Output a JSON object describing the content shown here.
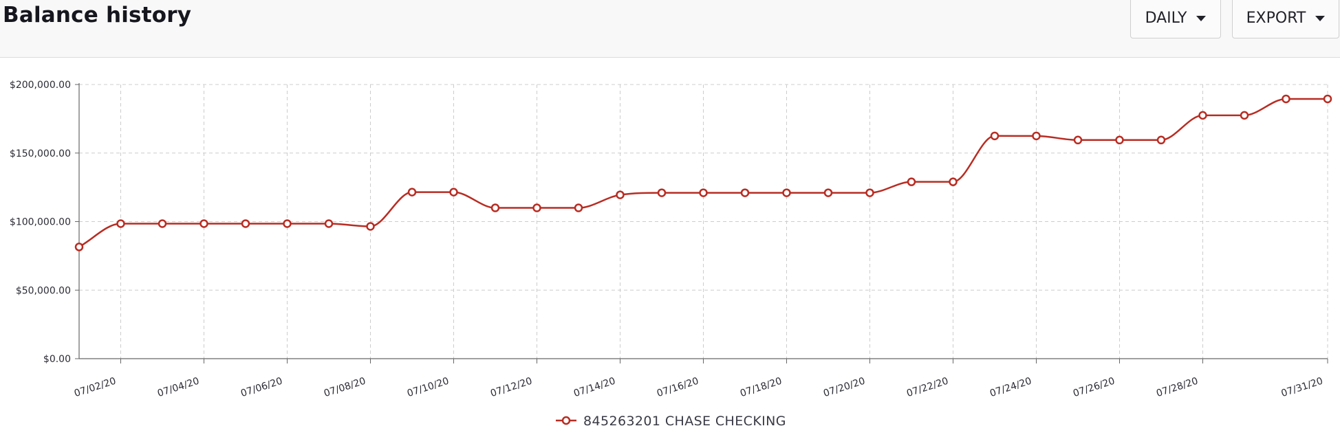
{
  "header": {
    "title": "Balance history",
    "daily_label": "DAILY",
    "export_label": "EXPORT"
  },
  "colors": {
    "series": "#b82c22",
    "grid": "#cccccc",
    "axis": "#666666"
  },
  "chart_data": {
    "type": "line",
    "title": "",
    "xlabel": "",
    "ylabel": "",
    "ylim": [
      0,
      200000
    ],
    "grid": true,
    "legend_placement": "bottom-center",
    "y_ticks": [
      "$0.00",
      "$50,000.00",
      "$100,000.00",
      "$150,000.00",
      "$200,000.00"
    ],
    "x_tick_labels": [
      "07/02/20",
      "07/04/20",
      "07/06/20",
      "07/08/20",
      "07/10/20",
      "07/12/20",
      "07/14/20",
      "07/16/20",
      "07/18/20",
      "07/20/20",
      "07/22/20",
      "07/24/20",
      "07/26/20",
      "07/28/20",
      "07/31/20"
    ],
    "x": [
      "07/01/20",
      "07/02/20",
      "07/03/20",
      "07/04/20",
      "07/05/20",
      "07/06/20",
      "07/07/20",
      "07/08/20",
      "07/09/20",
      "07/10/20",
      "07/11/20",
      "07/12/20",
      "07/13/20",
      "07/14/20",
      "07/15/20",
      "07/16/20",
      "07/17/20",
      "07/18/20",
      "07/19/20",
      "07/20/20",
      "07/21/20",
      "07/22/20",
      "07/23/20",
      "07/24/20",
      "07/25/20",
      "07/26/20",
      "07/27/20",
      "07/28/20",
      "07/29/20",
      "07/30/20",
      "07/31/20"
    ],
    "series": [
      {
        "name": "845263201 CHASE CHECKING",
        "values": [
          81500,
          98500,
          98500,
          98500,
          98500,
          98500,
          98500,
          96500,
          121500,
          121500,
          110000,
          110000,
          110000,
          119500,
          121000,
          121000,
          121000,
          121000,
          121000,
          121000,
          129000,
          129000,
          162500,
          162500,
          159500,
          159500,
          159500,
          177500,
          177500,
          189500,
          189500
        ]
      }
    ]
  }
}
